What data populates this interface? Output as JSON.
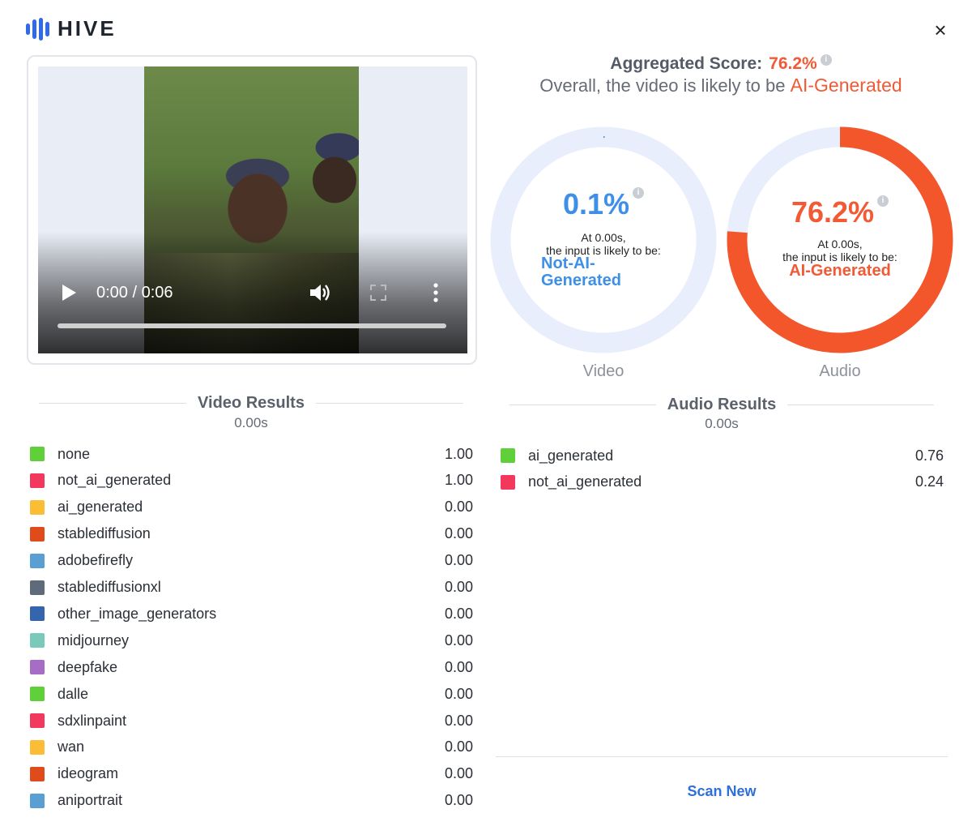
{
  "brand": {
    "name": "HIVE",
    "icon": "hive-logo-bars-icon",
    "color": "#2f6be8"
  },
  "close_icon": "×",
  "player": {
    "time": "0:00 / 0:06",
    "icons": {
      "play": "play-icon",
      "volume": "volume-icon",
      "fullscreen": "fullscreen-icon",
      "more": "more-vertical-icon"
    },
    "progress": 0
  },
  "aggregate": {
    "label": "Aggregated Score:",
    "value": "76.2%",
    "info": "i",
    "overall_prefix": "Overall, the video is likely to be",
    "overall_verdict": "AI-Generated"
  },
  "donuts": [
    {
      "caption": "Video",
      "percent": "0.1%",
      "fraction": 0.001,
      "at": "At 0.00s,",
      "likely": "the input is likely to be:",
      "verdict_line1": "Not-AI-",
      "verdict_line2": "Generated",
      "color": "#3d8fe8",
      "track": "#e8eefb"
    },
    {
      "caption": "Audio",
      "percent": "76.2%",
      "fraction": 0.762,
      "at": "At 0.00s,",
      "likely": "the input is likely to be:",
      "verdict_line1": "AI-Generated",
      "color": "#f4562b",
      "track": "#e8eefb"
    }
  ],
  "video_results": {
    "title": "Video Results",
    "time": "0.00s",
    "rows": [
      {
        "label": "none",
        "value": "1.00",
        "color": "#5fcf3a"
      },
      {
        "label": "not_ai_generated",
        "value": "1.00",
        "color": "#f2385c"
      },
      {
        "label": "ai_generated",
        "value": "0.00",
        "color": "#fbbd35"
      },
      {
        "label": "stablediffusion",
        "value": "0.00",
        "color": "#e04b1c"
      },
      {
        "label": "adobefirefly",
        "value": "0.00",
        "color": "#5a9fd4"
      },
      {
        "label": "stablediffusionxl",
        "value": "0.00",
        "color": "#5f6a7a"
      },
      {
        "label": "other_image_generators",
        "value": "0.00",
        "color": "#3566ad"
      },
      {
        "label": "midjourney",
        "value": "0.00",
        "color": "#7bc9bb"
      },
      {
        "label": "deepfake",
        "value": "0.00",
        "color": "#a66cc6"
      },
      {
        "label": "dalle",
        "value": "0.00",
        "color": "#5fcf3a"
      },
      {
        "label": "sdxlinpaint",
        "value": "0.00",
        "color": "#f2385c"
      },
      {
        "label": "wan",
        "value": "0.00",
        "color": "#fbbd35"
      },
      {
        "label": "ideogram",
        "value": "0.00",
        "color": "#e04b1c"
      },
      {
        "label": "aniportrait",
        "value": "0.00",
        "color": "#5a9fd4"
      }
    ]
  },
  "audio_results": {
    "title": "Audio Results",
    "time": "0.00s",
    "rows": [
      {
        "label": "ai_generated",
        "value": "0.76",
        "color": "#5fcf3a"
      },
      {
        "label": "not_ai_generated",
        "value": "0.24",
        "color": "#f2385c"
      }
    ]
  },
  "scan_new": "Scan New"
}
